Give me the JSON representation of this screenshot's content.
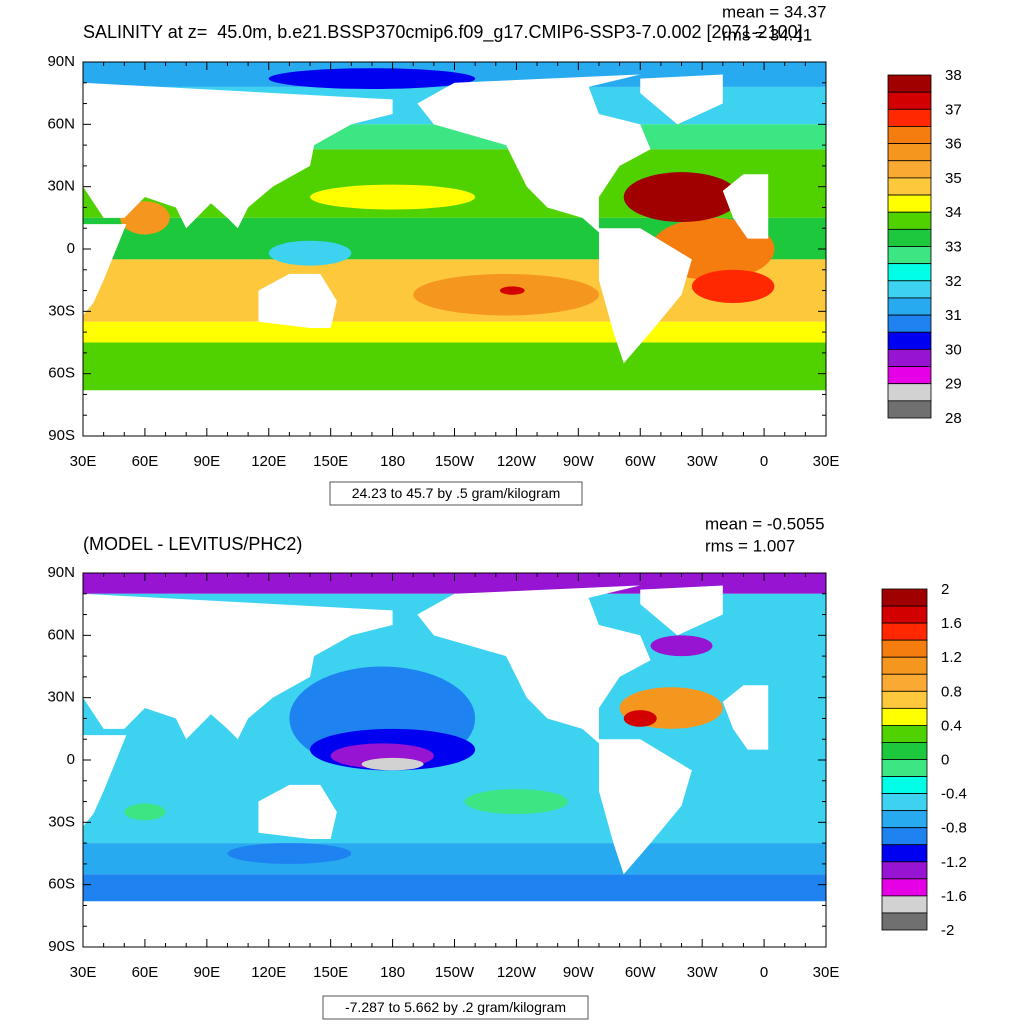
{
  "panels": [
    {
      "title": "SALINITY at z=  45.0m, b.e21.BSSP370cmip6.f09_g17.CMIP6-SSP3-7.0.002 [2071-2100]",
      "mean": "mean = 34.37",
      "rms": "rms = 34.41",
      "footer": "24.23 to 45.7 by .5 gram/kilogram",
      "colorbar": {
        "labels": [
          38,
          37,
          36,
          35,
          34,
          33,
          32,
          31,
          30,
          29,
          28
        ],
        "colors": [
          "#a00000",
          "#d20000",
          "#ff2800",
          "#f57d0f",
          "#f5961e",
          "#faaa32",
          "#fdc83c",
          "#ffff00",
          "#50d200",
          "#1ec83c",
          "#3ce682",
          "#00ffe6",
          "#3cd2f0",
          "#28aaf0",
          "#1e82f0",
          "#0000f0",
          "#9614d2",
          "#e600e6",
          "#d2d2d2",
          "#707070"
        ]
      }
    },
    {
      "title": "(MODEL - LEVITUS/PHC2)",
      "mean": "mean = -0.5055",
      "rms": "rms = 1.007",
      "footer": "-7.287 to 5.662 by .2 gram/kilogram",
      "colorbar": {
        "labels": [
          2,
          1.6,
          1.2,
          0.8,
          0.4,
          0,
          -0.4,
          -0.8,
          -1.2,
          -1.6,
          -2
        ],
        "colors": [
          "#a00000",
          "#d20000",
          "#ff2800",
          "#f57d0f",
          "#f5961e",
          "#faaa32",
          "#fdc83c",
          "#ffff00",
          "#50d200",
          "#1ec83c",
          "#3ce682",
          "#00ffe6",
          "#3cd2f0",
          "#28aaf0",
          "#1e82f0",
          "#0000f0",
          "#9614d2",
          "#e600e6",
          "#d2d2d2",
          "#707070"
        ]
      }
    }
  ],
  "lat_labels": [
    "90N",
    "60N",
    "30N",
    "0",
    "30S",
    "60S",
    "90S"
  ],
  "lon_labels": [
    "30E",
    "60E",
    "90E",
    "120E",
    "150E",
    "180",
    "150W",
    "120W",
    "90W",
    "60W",
    "30W",
    "0",
    "30E"
  ]
}
